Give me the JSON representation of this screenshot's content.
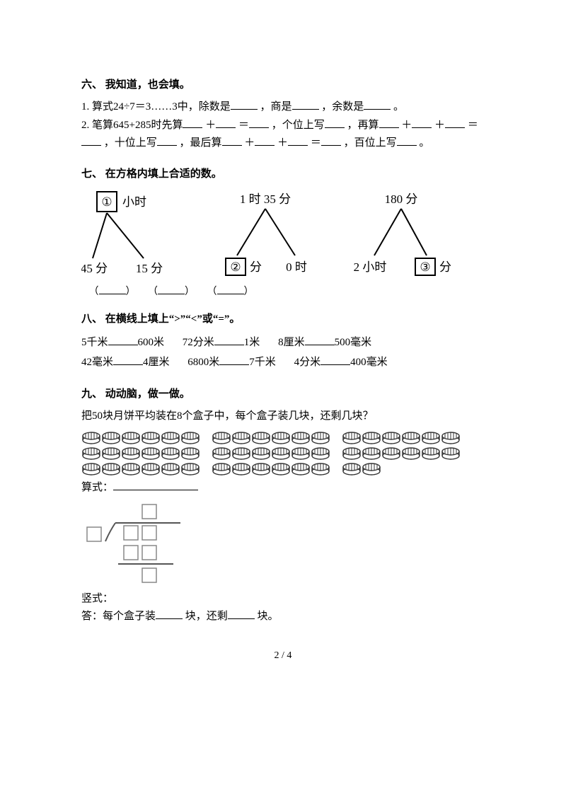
{
  "s6": {
    "title": "六、 我知道，也会填。",
    "q1_a": "1. 算式24÷7＝3……3中，除数是",
    "q1_b": "，商是",
    "q1_c": "，余数是",
    "q1_d": "。",
    "q2_a": "2. 笔算645+285时先算",
    "q2_b": "＋",
    "q2_c": "＝",
    "q2_d": "，个位上写",
    "q2_e": "，再算",
    "q2_f": "＋",
    "q2_g": "＋",
    "q2_h": "＝",
    "q2_i": "，十位上写",
    "q2_j": "，最后算",
    "q2_k": "＋",
    "q2_l": "＋",
    "q2_m": "＝",
    "q2_n": "，百位上写",
    "q2_o": "。"
  },
  "s7": {
    "title": "七、 在方格内填上合适的数。",
    "d1": {
      "top_num": "①",
      "top_unit": "小时",
      "left": "45 分",
      "right": "15 分"
    },
    "d2": {
      "top": "1 时 35 分",
      "left_num": "②",
      "left_unit": "分",
      "right": "0 时"
    },
    "d3": {
      "top": "180 分",
      "left": "2 小时",
      "right_num": "③",
      "right_unit": "分"
    },
    "ans_open": "（",
    "ans_close": "）"
  },
  "s8": {
    "title": "八、 在横线上填上“>”“<”或“=”。",
    "r1a": "5千米",
    "r1b": "600米",
    "r1c": "72分米",
    "r1d": "1米",
    "r1e": "8厘米",
    "r1f": "500毫米",
    "r2a": "42毫米",
    "r2b": "4厘米",
    "r2c": "6800米",
    "r2d": "7千米",
    "r2e": "4分米",
    "r2f": "400毫米"
  },
  "s9": {
    "title": "九、 动动脑，做一做。",
    "prompt": "把50块月饼平均装在8个盒子中，每个盒子装几块，还剩几块？",
    "label_formula": "算式：",
    "label_vertical": "竖式：",
    "ans_a": "答：每个盒子装",
    "ans_b": "块，还剩",
    "ans_c": "块。"
  },
  "footer": "2 / 4",
  "cake_layout": {
    "rows": 3,
    "groups_per_row": 3,
    "group_sizes": [
      6,
      6,
      6
    ],
    "row3_groups": [
      6,
      6,
      2
    ]
  },
  "colors": {
    "line": "#000000",
    "cake_fill": "#ffffff"
  }
}
